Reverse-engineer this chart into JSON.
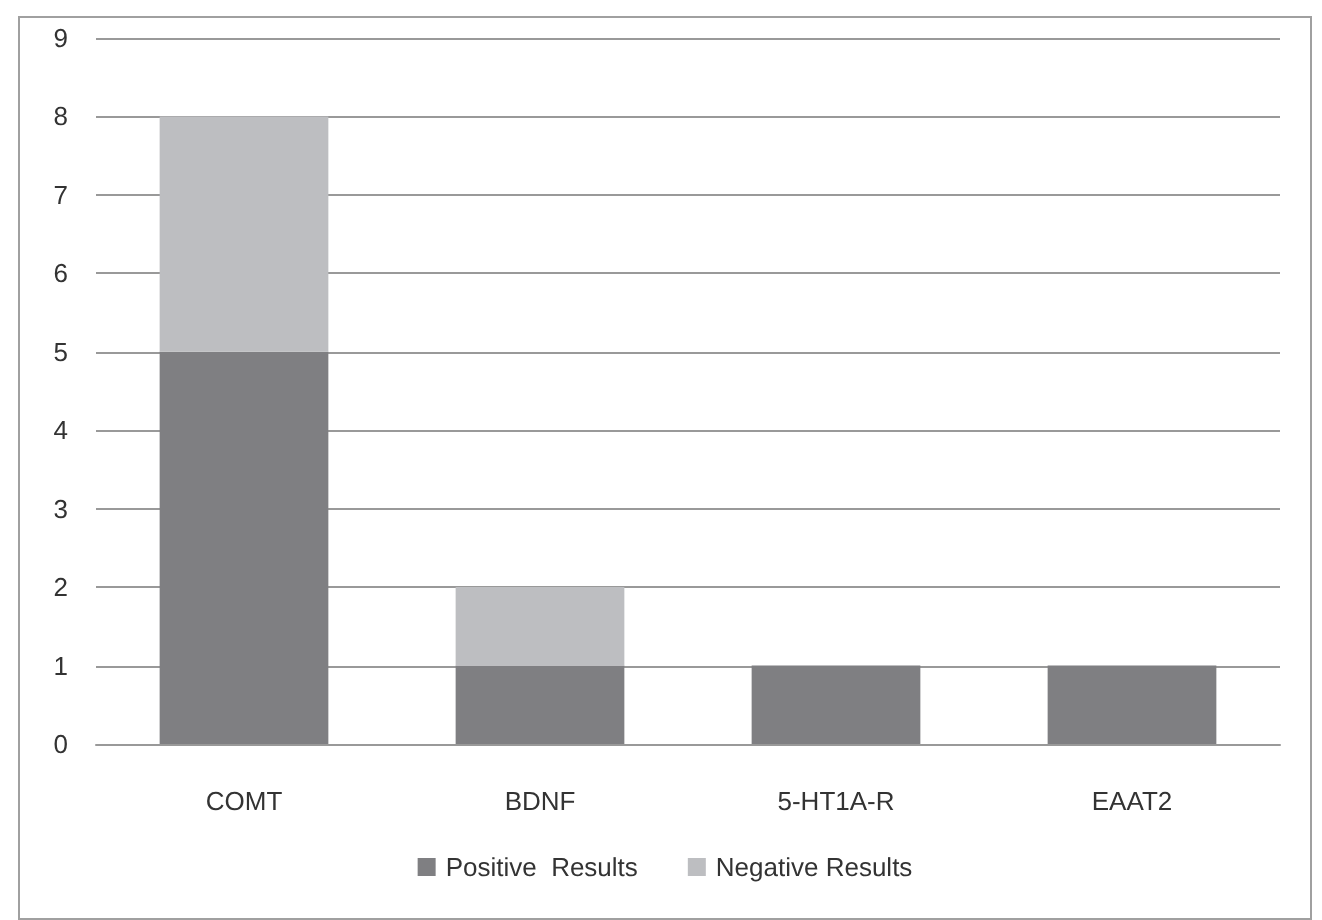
{
  "chart_data": {
    "type": "bar",
    "stacked": true,
    "categories": [
      "COMT",
      "BDNF",
      "5-HT1A-R",
      "EAAT2"
    ],
    "series": [
      {
        "name": "Positive  Results",
        "color": "#7f7f82",
        "values": [
          5,
          1,
          1,
          1
        ]
      },
      {
        "name": "Negative Results",
        "color": "#bdbec1",
        "values": [
          3,
          1,
          0,
          0
        ]
      }
    ],
    "ylim": [
      0,
      9
    ],
    "yticks": [
      0,
      1,
      2,
      3,
      4,
      5,
      6,
      7,
      8,
      9
    ],
    "grid": "y",
    "legend": "bottom"
  }
}
